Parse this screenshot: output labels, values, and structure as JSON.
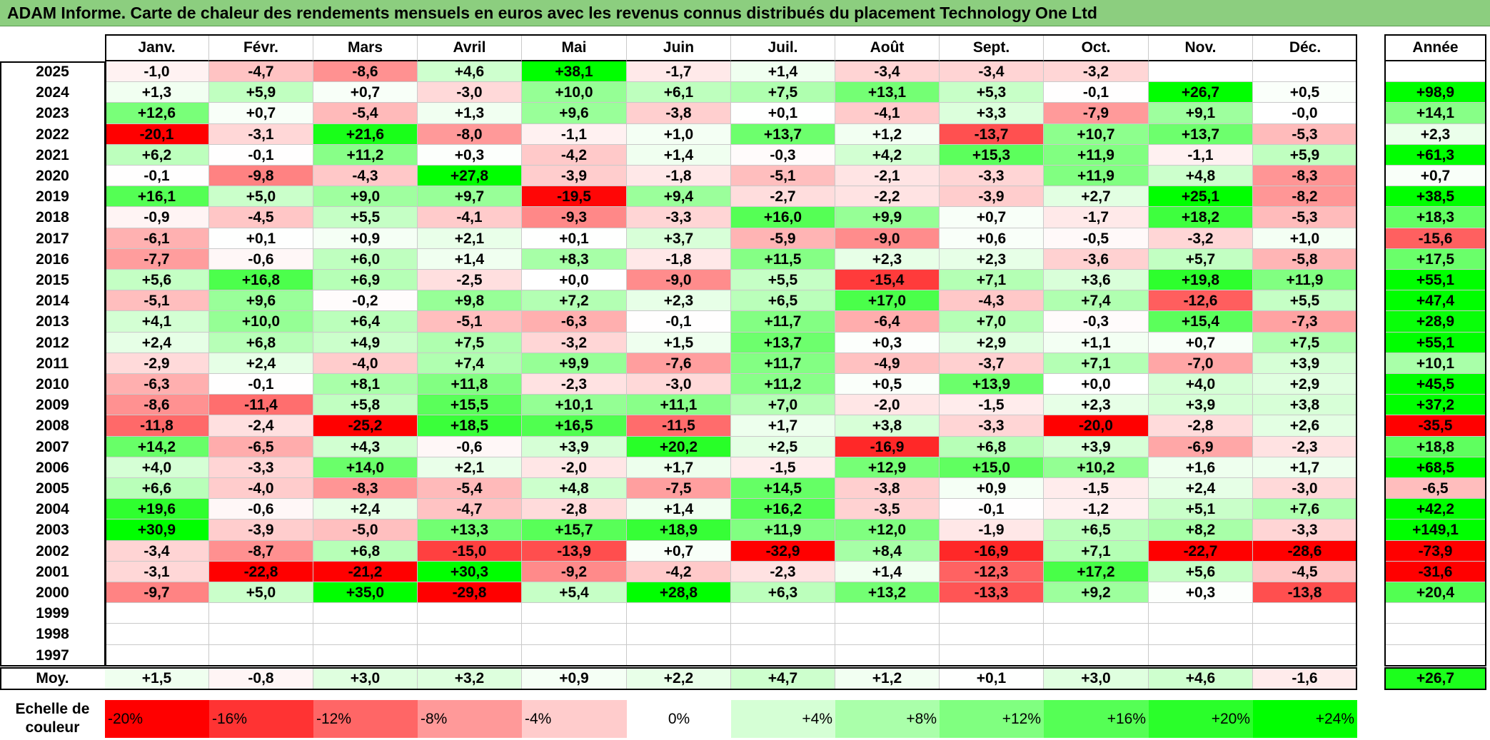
{
  "title": "ADAM Informe. Carte de chaleur des rendements mensuels en euros avec les revenus connus distribués du placement Technology One Ltd",
  "colors": {
    "title_bg": "#8cce7f",
    "neg_max": "#ff0000",
    "pos_max": "#00ff00",
    "zero": "#ffffff"
  },
  "chart_data": {
    "type": "heatmap",
    "months": [
      "Janv.",
      "Févr.",
      "Mars",
      "Avril",
      "Mai",
      "Juin",
      "Juil.",
      "Août",
      "Sept.",
      "Oct.",
      "Nov.",
      "Déc."
    ],
    "year_header": "Année",
    "rows": [
      {
        "year": "2025",
        "values": [
          "-1,0",
          "-4,7",
          "-8,6",
          "+4,6",
          "+38,1",
          "-1,7",
          "+1,4",
          "-3,4",
          "-3,4",
          "-3,2",
          "",
          ""
        ],
        "annual": ""
      },
      {
        "year": "2024",
        "values": [
          "+1,3",
          "+5,9",
          "+0,7",
          "-3,0",
          "+10,0",
          "+6,1",
          "+7,5",
          "+13,1",
          "+5,3",
          "-0,1",
          "+26,7",
          "+0,5"
        ],
        "annual": "+98,9"
      },
      {
        "year": "2023",
        "values": [
          "+12,6",
          "+0,7",
          "-5,4",
          "+1,3",
          "+9,6",
          "-3,8",
          "+0,1",
          "-4,1",
          "+3,3",
          "-7,9",
          "+9,1",
          "-0,0"
        ],
        "annual": "+14,1"
      },
      {
        "year": "2022",
        "values": [
          "-20,1",
          "-3,1",
          "+21,6",
          "-8,0",
          "-1,1",
          "+1,0",
          "+13,7",
          "+1,2",
          "-13,7",
          "+10,7",
          "+13,7",
          "-5,3"
        ],
        "annual": "+2,3"
      },
      {
        "year": "2021",
        "values": [
          "+6,2",
          "-0,1",
          "+11,2",
          "+0,3",
          "-4,2",
          "+1,4",
          "-0,3",
          "+4,2",
          "+15,3",
          "+11,9",
          "-1,1",
          "+5,9"
        ],
        "annual": "+61,3"
      },
      {
        "year": "2020",
        "values": [
          "-0,1",
          "-9,8",
          "-4,3",
          "+27,8",
          "-3,9",
          "-1,8",
          "-5,1",
          "-2,1",
          "-3,3",
          "+11,9",
          "+4,8",
          "-8,3"
        ],
        "annual": "+0,7"
      },
      {
        "year": "2019",
        "values": [
          "+16,1",
          "+5,0",
          "+9,0",
          "+9,7",
          "-19,5",
          "+9,4",
          "-2,7",
          "-2,2",
          "-3,9",
          "+2,7",
          "+25,1",
          "-8,2"
        ],
        "annual": "+38,5"
      },
      {
        "year": "2018",
        "values": [
          "-0,9",
          "-4,5",
          "+5,5",
          "-4,1",
          "-9,3",
          "-3,3",
          "+16,0",
          "+9,9",
          "+0,7",
          "-1,7",
          "+18,2",
          "-5,3"
        ],
        "annual": "+18,3"
      },
      {
        "year": "2017",
        "values": [
          "-6,1",
          "+0,1",
          "+0,9",
          "+2,1",
          "+0,1",
          "+3,7",
          "-5,9",
          "-9,0",
          "+0,6",
          "-0,5",
          "-3,2",
          "+1,0"
        ],
        "annual": "-15,6"
      },
      {
        "year": "2016",
        "values": [
          "-7,7",
          "-0,6",
          "+6,0",
          "+1,4",
          "+8,3",
          "-1,8",
          "+11,5",
          "+2,3",
          "+2,3",
          "-3,6",
          "+5,7",
          "-5,8"
        ],
        "annual": "+17,5"
      },
      {
        "year": "2015",
        "values": [
          "+5,6",
          "+16,8",
          "+6,9",
          "-2,5",
          "+0,0",
          "-9,0",
          "+5,5",
          "-15,4",
          "+7,1",
          "+3,6",
          "+19,8",
          "+11,9"
        ],
        "annual": "+55,1"
      },
      {
        "year": "2014",
        "values": [
          "-5,1",
          "+9,6",
          "-0,2",
          "+9,8",
          "+7,2",
          "+2,3",
          "+6,5",
          "+17,0",
          "-4,3",
          "+7,4",
          "-12,6",
          "+5,5"
        ],
        "annual": "+47,4"
      },
      {
        "year": "2013",
        "values": [
          "+4,1",
          "+10,0",
          "+6,4",
          "-5,1",
          "-6,3",
          "-0,1",
          "+11,7",
          "-6,4",
          "+7,0",
          "-0,3",
          "+15,4",
          "-7,3"
        ],
        "annual": "+28,9"
      },
      {
        "year": "2012",
        "values": [
          "+2,4",
          "+6,8",
          "+4,9",
          "+7,5",
          "-3,2",
          "+1,5",
          "+13,7",
          "+0,3",
          "+2,9",
          "+1,1",
          "+0,7",
          "+7,5"
        ],
        "annual": "+55,1"
      },
      {
        "year": "2011",
        "values": [
          "-2,9",
          "+2,4",
          "-4,0",
          "+7,4",
          "+9,9",
          "-7,6",
          "+11,7",
          "-4,9",
          "-3,7",
          "+7,1",
          "-7,0",
          "+3,9"
        ],
        "annual": "+10,1"
      },
      {
        "year": "2010",
        "values": [
          "-6,3",
          "-0,1",
          "+8,1",
          "+11,8",
          "-2,3",
          "-3,0",
          "+11,2",
          "+0,5",
          "+13,9",
          "+0,0",
          "+4,0",
          "+2,9"
        ],
        "annual": "+45,5"
      },
      {
        "year": "2009",
        "values": [
          "-8,6",
          "-11,4",
          "+5,8",
          "+15,5",
          "+10,1",
          "+11,1",
          "+7,0",
          "-2,0",
          "-1,5",
          "+2,3",
          "+3,9",
          "+3,8"
        ],
        "annual": "+37,2"
      },
      {
        "year": "2008",
        "values": [
          "-11,8",
          "-2,4",
          "-25,2",
          "+18,5",
          "+16,5",
          "-11,5",
          "+1,7",
          "+3,8",
          "-3,3",
          "-20,0",
          "-2,8",
          "+2,6"
        ],
        "annual": "-35,5"
      },
      {
        "year": "2007",
        "values": [
          "+14,2",
          "-6,5",
          "+4,3",
          "-0,6",
          "+3,9",
          "+20,2",
          "+2,5",
          "-16,9",
          "+6,8",
          "+3,9",
          "-6,9",
          "-2,3"
        ],
        "annual": "+18,8"
      },
      {
        "year": "2006",
        "values": [
          "+4,0",
          "-3,3",
          "+14,0",
          "+2,1",
          "-2,0",
          "+1,7",
          "-1,5",
          "+12,9",
          "+15,0",
          "+10,2",
          "+1,6",
          "+1,7"
        ],
        "annual": "+68,5"
      },
      {
        "year": "2005",
        "values": [
          "+6,6",
          "-4,0",
          "-8,3",
          "-5,4",
          "+4,8",
          "-7,5",
          "+14,5",
          "-3,8",
          "+0,9",
          "-1,5",
          "+2,4",
          "-3,0"
        ],
        "annual": "-6,5"
      },
      {
        "year": "2004",
        "values": [
          "+19,6",
          "-0,6",
          "+2,4",
          "-4,7",
          "-2,8",
          "+1,4",
          "+16,2",
          "-3,5",
          "-0,1",
          "-1,2",
          "+5,1",
          "+7,6"
        ],
        "annual": "+42,2"
      },
      {
        "year": "2003",
        "values": [
          "+30,9",
          "-3,9",
          "-5,0",
          "+13,3",
          "+15,7",
          "+18,9",
          "+11,9",
          "+12,0",
          "-1,9",
          "+6,5",
          "+8,2",
          "-3,3"
        ],
        "annual": "+149,1"
      },
      {
        "year": "2002",
        "values": [
          "-3,4",
          "-8,7",
          "+6,8",
          "-15,0",
          "-13,9",
          "+0,7",
          "-32,9",
          "+8,4",
          "-16,9",
          "+7,1",
          "-22,7",
          "-28,6"
        ],
        "annual": "-73,9"
      },
      {
        "year": "2001",
        "values": [
          "-3,1",
          "-22,8",
          "-21,2",
          "+30,3",
          "-9,2",
          "-4,2",
          "-2,3",
          "+1,4",
          "-12,3",
          "+17,2",
          "+5,6",
          "-4,5"
        ],
        "annual": "-31,6"
      },
      {
        "year": "2000",
        "values": [
          "-9,7",
          "+5,0",
          "+35,0",
          "-29,8",
          "+5,4",
          "+28,8",
          "+6,3",
          "+13,2",
          "-13,3",
          "+9,2",
          "+0,3",
          "-13,8"
        ],
        "annual": "+20,4"
      },
      {
        "year": "1999",
        "values": [
          "",
          "",
          "",
          "",
          "",
          "",
          "",
          "",
          "",
          "",
          "",
          ""
        ],
        "annual": ""
      },
      {
        "year": "1998",
        "values": [
          "",
          "",
          "",
          "",
          "",
          "",
          "",
          "",
          "",
          "",
          "",
          ""
        ],
        "annual": ""
      },
      {
        "year": "1997",
        "values": [
          "",
          "",
          "",
          "",
          "",
          "",
          "",
          "",
          "",
          "",
          "",
          ""
        ],
        "annual": ""
      }
    ],
    "average": {
      "label": "Moy.",
      "values": [
        "+1,5",
        "-0,8",
        "+3,0",
        "+3,2",
        "+0,9",
        "+2,2",
        "+4,7",
        "+1,2",
        "+0,1",
        "+3,0",
        "+4,6",
        "-1,6"
      ],
      "annual": "+26,7"
    },
    "scale": {
      "label": "Echelle de couleur",
      "steps": [
        "-20%",
        "-16%",
        "-12%",
        "-8%",
        "-4%",
        "0%",
        "+4%",
        "+8%",
        "+12%",
        "+16%",
        "+20%",
        "+24%"
      ],
      "values": [
        -20,
        -16,
        -12,
        -8,
        -4,
        0,
        4,
        8,
        12,
        16,
        20,
        24
      ]
    }
  }
}
